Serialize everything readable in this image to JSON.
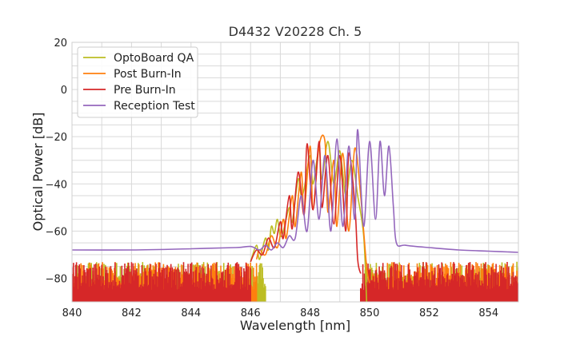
{
  "chart_data": {
    "type": "line",
    "title": "D4432 V20228 Ch. 5",
    "xlabel": "Wavelength [nm]",
    "ylabel": "Optical Power [dB]",
    "xlim": [
      840,
      855
    ],
    "ylim": [
      -90,
      20
    ],
    "xticks": [
      840,
      842,
      844,
      846,
      848,
      850,
      852,
      854
    ],
    "yticks": [
      20,
      0,
      -20,
      -40,
      -60,
      -80
    ],
    "xtick_labels": [
      "840",
      "842",
      "844",
      "846",
      "848",
      "850",
      "852",
      "854"
    ],
    "ytick_labels": [
      "20",
      "0",
      "−20",
      "−40",
      "−60",
      "−80"
    ],
    "grid": true,
    "legend_position": "top-left",
    "noise_floor": {
      "min": -90,
      "max": -73
    },
    "series": [
      {
        "name": "OptoBoard QA",
        "color": "#bcbd22",
        "noise_range": [
          [
            840.0,
            846.5
          ],
          [
            849.85,
            855.0
          ]
        ],
        "points": [
          [
            846.0,
            -73
          ],
          [
            846.2,
            -66
          ],
          [
            846.3,
            -72
          ],
          [
            846.5,
            -63
          ],
          [
            846.6,
            -68
          ],
          [
            846.7,
            -58
          ],
          [
            846.8,
            -61
          ],
          [
            846.9,
            -55
          ],
          [
            847.0,
            -62
          ],
          [
            847.1,
            -60
          ],
          [
            847.3,
            -50
          ],
          [
            847.4,
            -56
          ],
          [
            847.6,
            -38
          ],
          [
            847.7,
            -45
          ],
          [
            847.8,
            -42
          ],
          [
            848.0,
            -28
          ],
          [
            848.1,
            -40
          ],
          [
            848.3,
            -25
          ],
          [
            848.4,
            -38
          ],
          [
            848.6,
            -22
          ],
          [
            848.8,
            -40
          ],
          [
            849.0,
            -26
          ],
          [
            849.2,
            -45
          ],
          [
            849.4,
            -30
          ],
          [
            849.6,
            -45
          ],
          [
            849.8,
            -62
          ],
          [
            849.9,
            -90
          ]
        ]
      },
      {
        "name": "Post Burn-In",
        "color": "#ff7f0e",
        "noise_range": [
          [
            840.0,
            846.2
          ],
          [
            850.0,
            855.0
          ]
        ],
        "points": [
          [
            846.2,
            -72
          ],
          [
            846.3,
            -68
          ],
          [
            846.5,
            -70
          ],
          [
            846.7,
            -62
          ],
          [
            846.9,
            -67
          ],
          [
            847.1,
            -55
          ],
          [
            847.2,
            -63
          ],
          [
            847.4,
            -45
          ],
          [
            847.5,
            -58
          ],
          [
            847.7,
            -35
          ],
          [
            847.8,
            -52
          ],
          [
            848.0,
            -24
          ],
          [
            848.1,
            -50
          ],
          [
            848.3,
            -24
          ],
          [
            848.5,
            -22
          ],
          [
            848.6,
            -52
          ],
          [
            848.8,
            -30
          ],
          [
            848.9,
            -58
          ],
          [
            849.1,
            -27
          ],
          [
            849.3,
            -60
          ],
          [
            849.5,
            -25
          ],
          [
            849.7,
            -45
          ],
          [
            849.9,
            -75
          ],
          [
            850.0,
            -82
          ]
        ]
      },
      {
        "name": "Pre Burn-In",
        "color": "#d62728",
        "noise_range": [
          [
            840.0,
            846.0
          ],
          [
            849.7,
            855.0
          ]
        ],
        "points": [
          [
            846.0,
            -73
          ],
          [
            846.2,
            -68
          ],
          [
            846.4,
            -70
          ],
          [
            846.6,
            -63
          ],
          [
            846.8,
            -67
          ],
          [
            847.0,
            -56
          ],
          [
            847.1,
            -63
          ],
          [
            847.3,
            -45
          ],
          [
            847.4,
            -59
          ],
          [
            847.6,
            -35
          ],
          [
            847.8,
            -53
          ],
          [
            847.9,
            -23
          ],
          [
            848.1,
            -51
          ],
          [
            848.3,
            -22
          ],
          [
            848.4,
            -50
          ],
          [
            848.6,
            -28
          ],
          [
            848.8,
            -57
          ],
          [
            849.0,
            -28
          ],
          [
            849.2,
            -60
          ],
          [
            849.3,
            -27
          ],
          [
            849.5,
            -48
          ],
          [
            849.6,
            -72
          ],
          [
            849.7,
            -78
          ]
        ]
      },
      {
        "name": "Reception Test",
        "color": "#9467bd",
        "noise_range": [],
        "points": [
          [
            840.0,
            -68
          ],
          [
            842.0,
            -68
          ],
          [
            844.0,
            -67.5
          ],
          [
            845.5,
            -67
          ],
          [
            846.0,
            -66.5
          ],
          [
            846.3,
            -68
          ],
          [
            846.5,
            -66
          ],
          [
            846.7,
            -68
          ],
          [
            846.9,
            -65
          ],
          [
            847.1,
            -67
          ],
          [
            847.3,
            -62
          ],
          [
            847.5,
            -63
          ],
          [
            847.7,
            -45
          ],
          [
            847.9,
            -60
          ],
          [
            848.1,
            -30
          ],
          [
            848.3,
            -55
          ],
          [
            848.5,
            -28
          ],
          [
            848.7,
            -60
          ],
          [
            848.9,
            -21
          ],
          [
            849.1,
            -58
          ],
          [
            849.3,
            -24
          ],
          [
            849.5,
            -55
          ],
          [
            849.6,
            -17
          ],
          [
            849.8,
            -58
          ],
          [
            850.0,
            -22
          ],
          [
            850.2,
            -55
          ],
          [
            850.35,
            -22
          ],
          [
            850.5,
            -45
          ],
          [
            850.65,
            -24
          ],
          [
            850.8,
            -50
          ],
          [
            850.9,
            -65
          ],
          [
            851.2,
            -66
          ],
          [
            852.0,
            -67
          ],
          [
            853.0,
            -68
          ],
          [
            854.0,
            -68.5
          ],
          [
            855.0,
            -69
          ]
        ]
      }
    ]
  }
}
